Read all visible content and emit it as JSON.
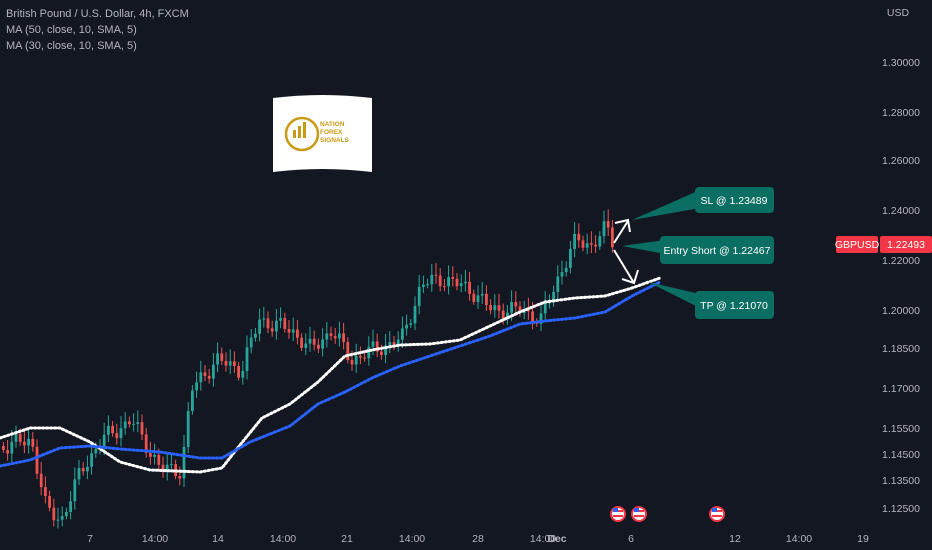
{
  "legend": {
    "symbol": "British Pound / U.S. Dollar, 4h, FXCM",
    "ma50": "MA (50, close, 10, SMA, 5)",
    "ma30": "MA (30, close, 10, SMA, 5)"
  },
  "colors": {
    "background": "#131722",
    "up": "#26a69a",
    "down": "#ef5350",
    "ma50": "#ffffff",
    "ma30": "#2962ff",
    "callout": "#0b6e63",
    "price_tag": "#f23645"
  },
  "logo": {
    "line1": "NATION",
    "line2": "FOREX",
    "line3": "SIGNALS"
  },
  "price_tag": {
    "symbol": "GBPUSD",
    "price": "1.22493"
  },
  "event_icons": [
    "us-flag-icon",
    "us-flag-icon",
    "us-flag-icon"
  ],
  "chart_data": {
    "type": "candlestick",
    "title": "British Pound / U.S. Dollar, 4h, FXCM",
    "currency_label": "USD",
    "y_ticks": [
      "1.30000",
      "1.28000",
      "1.26000",
      "1.24000",
      "1.22000",
      "1.20000",
      "1.18500",
      "1.17000",
      "1.15500",
      "1.14500",
      "1.13500",
      "1.12500"
    ],
    "x_ticks": [
      "7",
      "14:00",
      "14",
      "14:00",
      "21",
      "14:00",
      "28",
      "14:00",
      "Dec",
      "6",
      "12",
      "14:00",
      "19"
    ],
    "series": [
      {
        "name": "MA (50, close, 10, SMA, 5)",
        "color": "#ffffff"
      },
      {
        "name": "MA (30, close, 10, SMA, 5)",
        "color": "#2962ff"
      }
    ],
    "annotations": [
      {
        "label": "SL @ 1.23489",
        "value": 1.23489
      },
      {
        "label": "Entry Short @ 1.22467",
        "value": 1.22467
      },
      {
        "label": "TP @ 1.21070",
        "value": 1.2107
      }
    ],
    "last_price": 1.22493
  }
}
